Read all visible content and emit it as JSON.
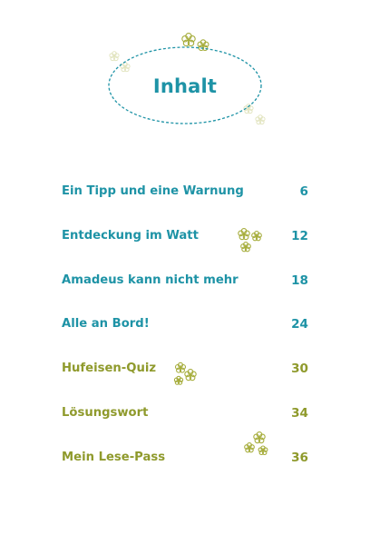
{
  "title": "Inhalt",
  "colors": {
    "teal": "#1e93a6",
    "olive": "#8f9a2c",
    "flower": "#a6ad3c"
  },
  "entries": [
    {
      "title": "Ein Tipp und eine Warnung",
      "page": "6",
      "color": "teal"
    },
    {
      "title": "Entdeckung im Watt",
      "page": "12",
      "color": "teal"
    },
    {
      "title": "Amadeus kann nicht mehr",
      "page": "18",
      "color": "teal"
    },
    {
      "title": "Alle an Bord!",
      "page": "24",
      "color": "teal"
    },
    {
      "title": "Hufeisen-Quiz",
      "page": "30",
      "color": "olive"
    },
    {
      "title": "Lösungswort",
      "page": "34",
      "color": "olive"
    },
    {
      "title": "Mein Lese-Pass",
      "page": "36",
      "color": "olive"
    }
  ],
  "decorations": {
    "icon": "flower-cluster-icon"
  }
}
